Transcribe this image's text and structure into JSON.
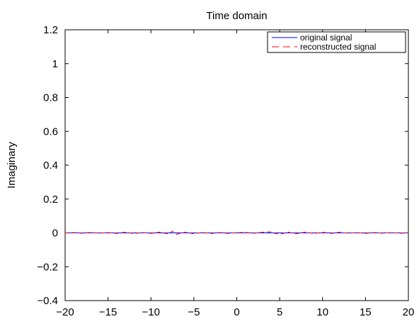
{
  "chart_data": {
    "type": "line",
    "title": "Time domain",
    "xlabel": "",
    "ylabel": "Imaginary",
    "xlim": [
      -20,
      20
    ],
    "ylim": [
      -0.4,
      1.2
    ],
    "x_ticks": [
      -20,
      -15,
      -10,
      -5,
      0,
      5,
      10,
      15,
      20
    ],
    "x_tick_labels": [
      "−20",
      "−15",
      "−10",
      "−5",
      "0",
      "5",
      "10",
      "15",
      "20"
    ],
    "y_ticks": [
      -0.4,
      -0.2,
      0,
      0.2,
      0.4,
      0.6,
      0.8,
      1,
      1.2
    ],
    "y_tick_labels": [
      "−0.4",
      "−0.2",
      "0",
      "0.2",
      "0.4",
      "0.6",
      "0.8",
      "1",
      "1.2"
    ],
    "grid": false,
    "legend_position": "top-right",
    "series": [
      {
        "name": "original signal",
        "color": "#0000ff",
        "style": "solid",
        "x": [
          -20,
          20
        ],
        "y": [
          0,
          0
        ]
      },
      {
        "name": "reconstructed signal",
        "color": "#ff0000",
        "style": "dashed",
        "x": [
          -20,
          -19,
          -18,
          -17,
          -16,
          -15,
          -14,
          -13,
          -12,
          -11,
          -10,
          -9,
          -8,
          -7.5,
          -7,
          -6,
          -5,
          -4,
          -3,
          -2,
          -1,
          0,
          1,
          2,
          3,
          4,
          4.5,
          5,
          6,
          7,
          8,
          9,
          10,
          11,
          12,
          13,
          14,
          15,
          16,
          17,
          18,
          19,
          20
        ],
        "y": [
          0,
          0.002,
          -0.002,
          0.003,
          -0.002,
          0.002,
          -0.003,
          0.004,
          -0.004,
          0.002,
          -0.003,
          0.004,
          -0.006,
          0.01,
          -0.008,
          0.004,
          -0.005,
          0.003,
          -0.004,
          0.002,
          -0.003,
          0.002,
          0.003,
          -0.002,
          0.004,
          0.006,
          -0.004,
          -0.008,
          0.004,
          -0.005,
          0.005,
          -0.004,
          0.004,
          -0.003,
          0.004,
          -0.002,
          0.002,
          -0.003,
          0.002,
          -0.002,
          0.002,
          -0.002,
          0
        ]
      }
    ]
  }
}
